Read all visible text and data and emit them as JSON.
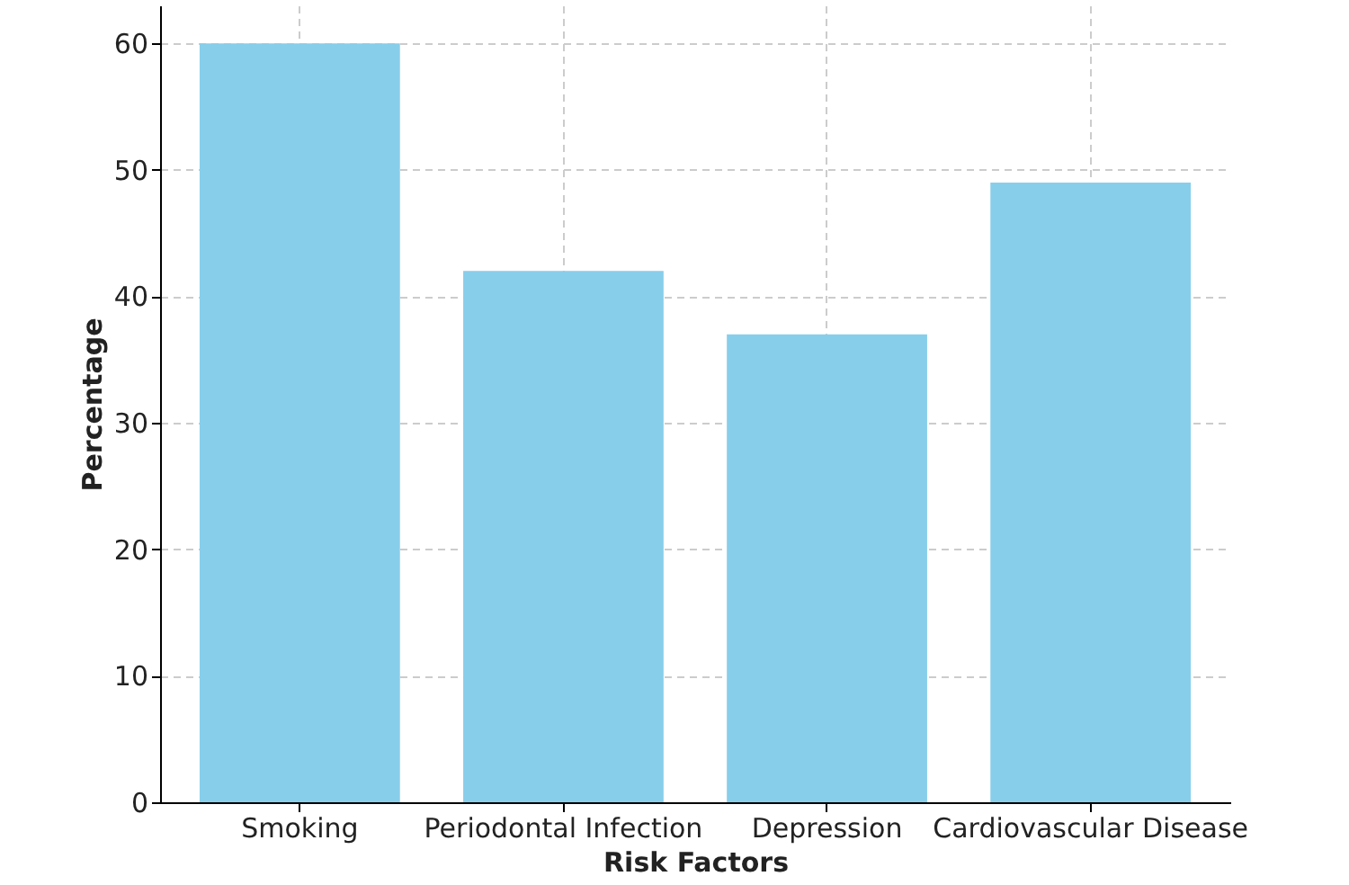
{
  "chart_data": {
    "type": "bar",
    "xlabel": "Risk Factors",
    "ylabel": "Percentage",
    "categories": [
      "Smoking",
      "Periodontal Infection",
      "Depression",
      "Cardiovascular Disease"
    ],
    "values": [
      60,
      42,
      37,
      49
    ],
    "color": "#87ceeb",
    "ylim": [
      0,
      63
    ],
    "yticks": [
      0,
      10,
      20,
      30,
      40,
      50,
      60
    ],
    "grid": true,
    "line_style": "dashed"
  }
}
